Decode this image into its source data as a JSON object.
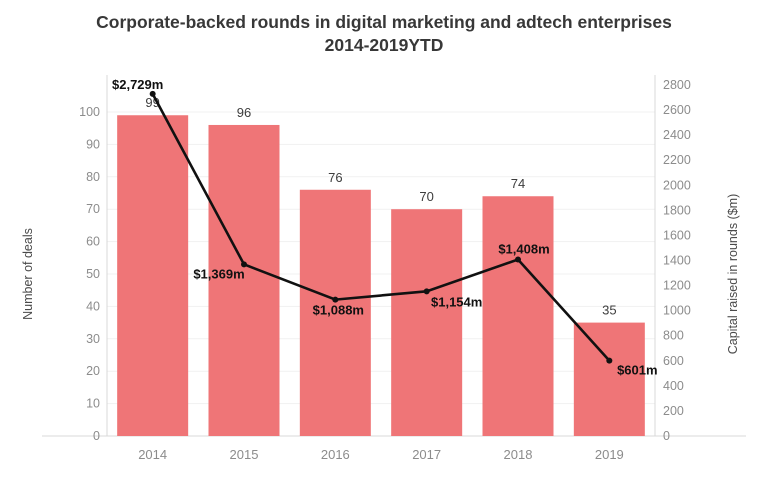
{
  "title": {
    "line1": "Corporate-backed rounds in digital marketing and adtech enterprises",
    "line2": "2014-2019YTD"
  },
  "chart_data": {
    "type": "combo-bar-line",
    "title": "Corporate-backed rounds in digital marketing and adtech enterprises 2014-2019YTD",
    "categories": [
      "2014",
      "2015",
      "2016",
      "2017",
      "2018",
      "2019"
    ],
    "series": [
      {
        "name": "Number of deals",
        "type": "bar",
        "axis": "left",
        "values": [
          99,
          96,
          76,
          70,
          74,
          35
        ],
        "data_labels": [
          "99",
          "96",
          "76",
          "70",
          "74",
          "35"
        ]
      },
      {
        "name": "Capital raised in rounds ($m)",
        "type": "line",
        "axis": "right",
        "values": [
          2729,
          1369,
          1088,
          1154,
          1408,
          601
        ],
        "data_labels": [
          "$2,729m",
          "$1,369m",
          "$1,088m",
          "$1,154m",
          "$1,408m",
          "$601m"
        ]
      }
    ],
    "left_axis": {
      "label": "Number of deals",
      "min": 0,
      "max": 100,
      "step": 10,
      "ticks": [
        "0",
        "10",
        "20",
        "30",
        "40",
        "50",
        "60",
        "70",
        "80",
        "90",
        "100"
      ]
    },
    "right_axis": {
      "label": "Capital raised in rounds ($m)",
      "min": 0,
      "max": 2800,
      "step": 200,
      "ticks": [
        "0",
        "200",
        "400",
        "600",
        "800",
        "1000",
        "1200",
        "1400",
        "1600",
        "1800",
        "2000",
        "2200",
        "2400",
        "2600",
        "2800"
      ]
    },
    "legend": "none",
    "grid": "horizontal"
  },
  "colors": {
    "bar": "#ef7577",
    "line": "#111111",
    "grid": "#f1f1f1",
    "axis_line": "#d8d8d8",
    "tick_text": "#8c8c8c",
    "axis_title": "#4a4a4a",
    "bar_label": "#3d3d3d",
    "line_label": "#111111",
    "title_text": "#383838"
  }
}
